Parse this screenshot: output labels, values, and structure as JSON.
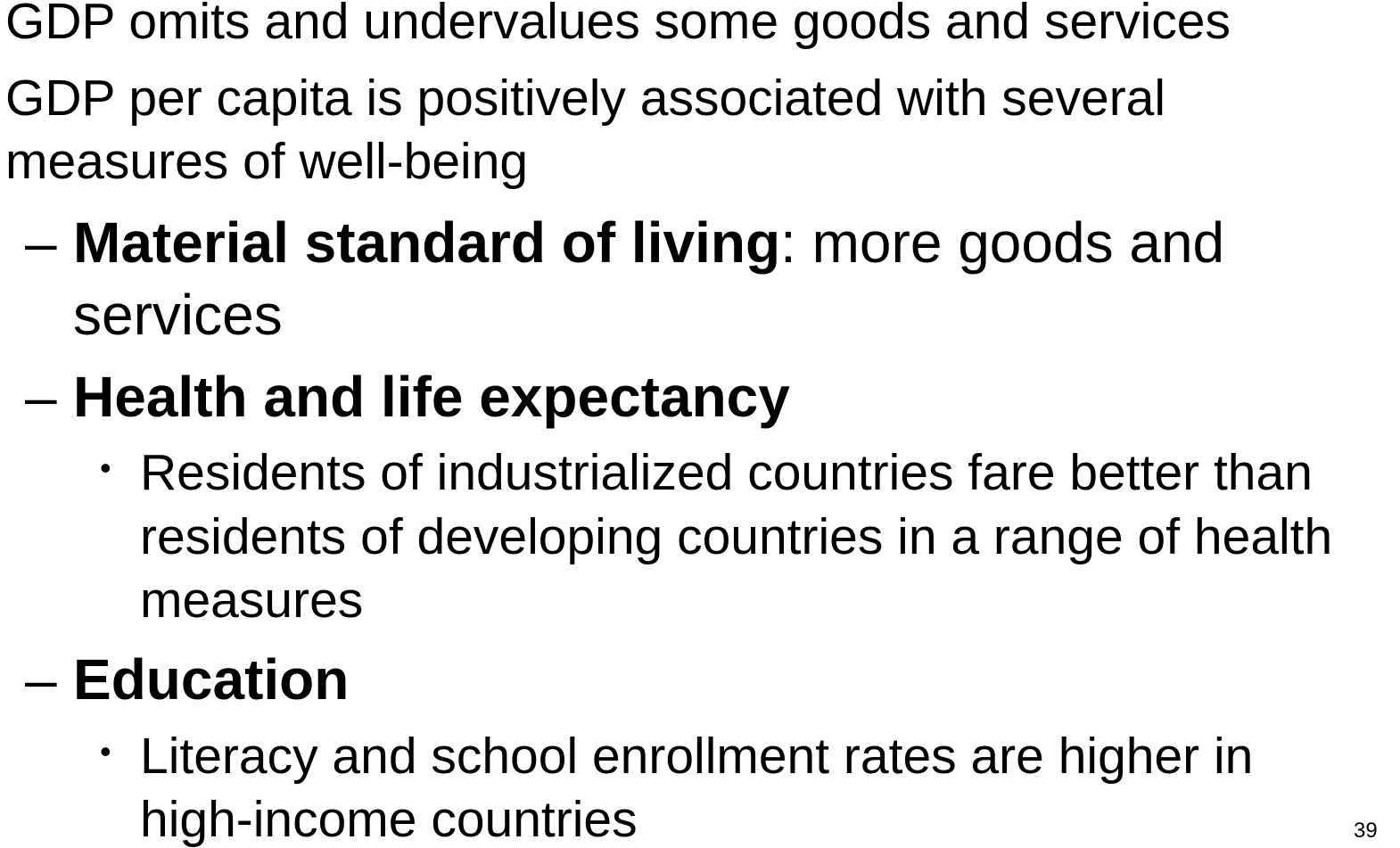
{
  "slide": {
    "top_points": [
      {
        "lines": [
          "GDP omits and undervalues some goods and services"
        ]
      },
      {
        "lines": [
          "GDP per capita is positively associated with several",
          "measures of well-being"
        ]
      }
    ],
    "subpoints": [
      {
        "dash": "–",
        "bold": "Material standard of living",
        "rest_line1": ":  more goods and",
        "rest_line2": "services"
      },
      {
        "dash": "–",
        "bold": "Health and life expectancy",
        "bullet": "•",
        "detail_lines": [
          "Residents of industrialized countries fare better than",
          "residents of developing countries in a range of health",
          "measures"
        ]
      },
      {
        "dash": "–",
        "bold": "Education",
        "bullet": "•",
        "detail_lines": [
          "Literacy and school enrollment rates are higher in",
          "high-income countries"
        ]
      }
    ],
    "page_number": "39"
  }
}
